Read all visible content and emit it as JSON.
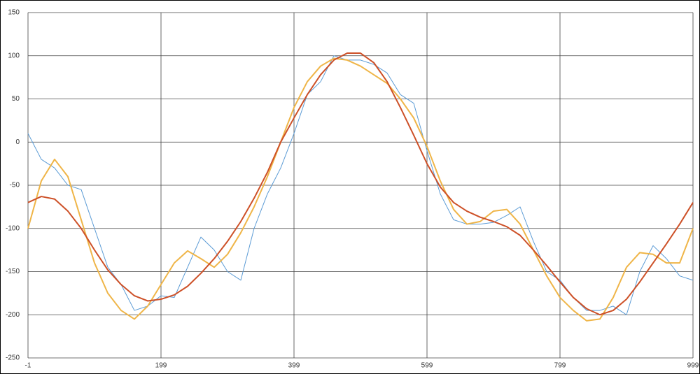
{
  "chart_data": {
    "type": "line",
    "x": [
      -1,
      19,
      39,
      59,
      79,
      99,
      119,
      139,
      159,
      179,
      199,
      219,
      239,
      259,
      279,
      299,
      319,
      339,
      359,
      379,
      399,
      419,
      439,
      459,
      479,
      499,
      519,
      539,
      559,
      579,
      599,
      619,
      639,
      659,
      679,
      699,
      719,
      739,
      759,
      779,
      799,
      819,
      839,
      859,
      879,
      899,
      919,
      939,
      959,
      979,
      999
    ],
    "series": [
      {
        "color": "#5b9bd5",
        "width": 1,
        "values": [
          10,
          -20,
          -30,
          -50,
          -55,
          -100,
          -145,
          -165,
          -195,
          -190,
          -178,
          -180,
          -145,
          -110,
          -125,
          -150,
          -160,
          -100,
          -60,
          -30,
          10,
          55,
          70,
          100,
          95,
          95,
          90,
          80,
          55,
          45,
          -10,
          -60,
          -90,
          -95,
          -95,
          -93,
          -85,
          -75,
          -115,
          -150,
          -160,
          -180,
          -195,
          -195,
          -190,
          -200,
          -150,
          -120,
          -135,
          -155,
          -160
        ]
      },
      {
        "color": "#efb548",
        "width": 2,
        "values": [
          -100,
          -45,
          -20,
          -40,
          -90,
          -140,
          -175,
          -195,
          -205,
          -190,
          -165,
          -140,
          -126,
          -135,
          -145,
          -130,
          -105,
          -75,
          -40,
          0,
          40,
          70,
          88,
          97,
          95,
          88,
          78,
          68,
          50,
          28,
          -5,
          -45,
          -78,
          -95,
          -92,
          -80,
          -78,
          -95,
          -125,
          -155,
          -180,
          -195,
          -207,
          -205,
          -180,
          -145,
          -128,
          -130,
          -140,
          -140,
          -100
        ]
      },
      {
        "color": "#cd5027",
        "width": 2,
        "values": [
          -70,
          -63,
          -66,
          -80,
          -100,
          -125,
          -148,
          -165,
          -178,
          -184,
          -182,
          -177,
          -167,
          -152,
          -135,
          -115,
          -92,
          -65,
          -35,
          0,
          28,
          55,
          78,
          95,
          103,
          103,
          92,
          70,
          40,
          8,
          -25,
          -52,
          -70,
          -80,
          -87,
          -92,
          -98,
          -108,
          -125,
          -143,
          -162,
          -180,
          -193,
          -200,
          -195,
          -182,
          -162,
          -140,
          -118,
          -95,
          -70
        ]
      }
    ],
    "xlim": [
      -1,
      999
    ],
    "xticks": [
      -1,
      199,
      399,
      599,
      799,
      999
    ],
    "ylim": [
      -250,
      150
    ],
    "yticks": [
      -250,
      -200,
      -150,
      -100,
      -50,
      0,
      50,
      100,
      150
    ],
    "grid": true
  }
}
